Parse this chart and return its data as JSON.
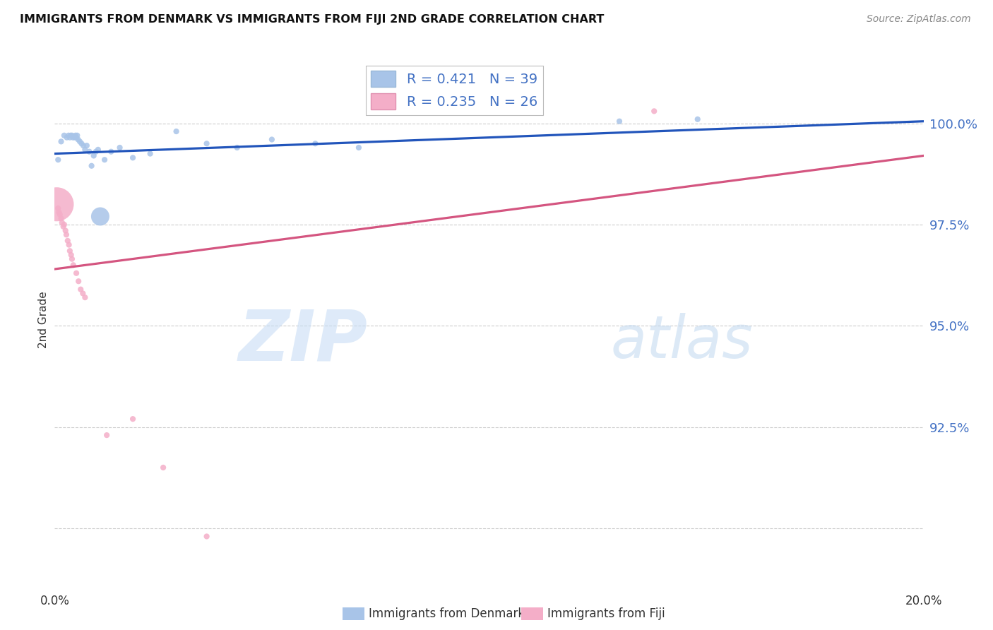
{
  "title": "IMMIGRANTS FROM DENMARK VS IMMIGRANTS FROM FIJI 2ND GRADE CORRELATION CHART",
  "source": "Source: ZipAtlas.com",
  "ylabel": "2nd Grade",
  "yticks": [
    90.0,
    92.5,
    95.0,
    97.5,
    100.0
  ],
  "ytick_labels": [
    "",
    "92.5%",
    "95.0%",
    "97.5%",
    "100.0%"
  ],
  "xlim": [
    0.0,
    20.0
  ],
  "ylim": [
    88.5,
    101.8
  ],
  "denmark_color": "#a8c4e8",
  "fiji_color": "#f4aec8",
  "denmark_line_color": "#2255bb",
  "fiji_line_color": "#d45580",
  "denmark_R": 0.421,
  "denmark_N": 39,
  "fiji_R": 0.235,
  "fiji_N": 26,
  "watermark_zip_color": "#c8ddf5",
  "watermark_atlas_color": "#c0d8f0",
  "legend_box_color": "#dddddd",
  "right_axis_color": "#4472c4",
  "denmark_x": [
    0.08,
    0.15,
    0.22,
    0.28,
    0.32,
    0.35,
    0.37,
    0.4,
    0.42,
    0.44,
    0.46,
    0.48,
    0.5,
    0.52,
    0.54,
    0.58,
    0.62,
    0.66,
    0.7,
    0.74,
    0.8,
    0.85,
    0.9,
    0.95,
    1.0,
    1.05,
    1.15,
    1.3,
    1.5,
    1.8,
    2.2,
    2.8,
    3.5,
    4.2,
    5.0,
    6.0,
    7.0,
    13.0,
    14.8
  ],
  "denmark_y": [
    99.1,
    99.55,
    99.7,
    99.65,
    99.7,
    99.65,
    99.7,
    99.7,
    99.65,
    99.68,
    99.65,
    99.7,
    99.65,
    99.7,
    99.6,
    99.55,
    99.5,
    99.45,
    99.35,
    99.45,
    99.3,
    98.95,
    99.2,
    99.3,
    99.35,
    97.7,
    99.1,
    99.3,
    99.4,
    99.15,
    99.25,
    99.8,
    99.5,
    99.4,
    99.6,
    99.5,
    99.4,
    100.05,
    100.1
  ],
  "denmark_sizes": [
    35,
    35,
    35,
    35,
    35,
    35,
    35,
    35,
    35,
    35,
    35,
    35,
    35,
    35,
    35,
    35,
    35,
    35,
    35,
    35,
    35,
    35,
    35,
    35,
    35,
    350,
    35,
    35,
    35,
    35,
    35,
    35,
    35,
    35,
    35,
    35,
    35,
    35,
    35
  ],
  "fiji_x": [
    0.05,
    0.08,
    0.1,
    0.12,
    0.15,
    0.17,
    0.2,
    0.22,
    0.25,
    0.27,
    0.3,
    0.33,
    0.35,
    0.38,
    0.4,
    0.43,
    0.5,
    0.55,
    0.6,
    0.65,
    0.7,
    1.2,
    1.8,
    2.5,
    3.5,
    13.8
  ],
  "fiji_y": [
    98.0,
    97.9,
    97.8,
    97.75,
    97.65,
    97.55,
    97.45,
    97.5,
    97.35,
    97.25,
    97.1,
    97.0,
    96.85,
    96.75,
    96.65,
    96.5,
    96.3,
    96.1,
    95.9,
    95.8,
    95.7,
    92.3,
    92.7,
    91.5,
    89.8,
    100.3
  ],
  "fiji_sizes": [
    1200,
    35,
    35,
    35,
    35,
    35,
    35,
    35,
    35,
    35,
    35,
    35,
    35,
    35,
    35,
    35,
    35,
    35,
    35,
    35,
    35,
    35,
    35,
    35,
    35,
    35
  ],
  "denmark_line_x": [
    0.0,
    20.0
  ],
  "denmark_line_y": [
    99.25,
    100.05
  ],
  "fiji_line_x": [
    0.0,
    20.0
  ],
  "fiji_line_y": [
    96.4,
    99.2
  ]
}
